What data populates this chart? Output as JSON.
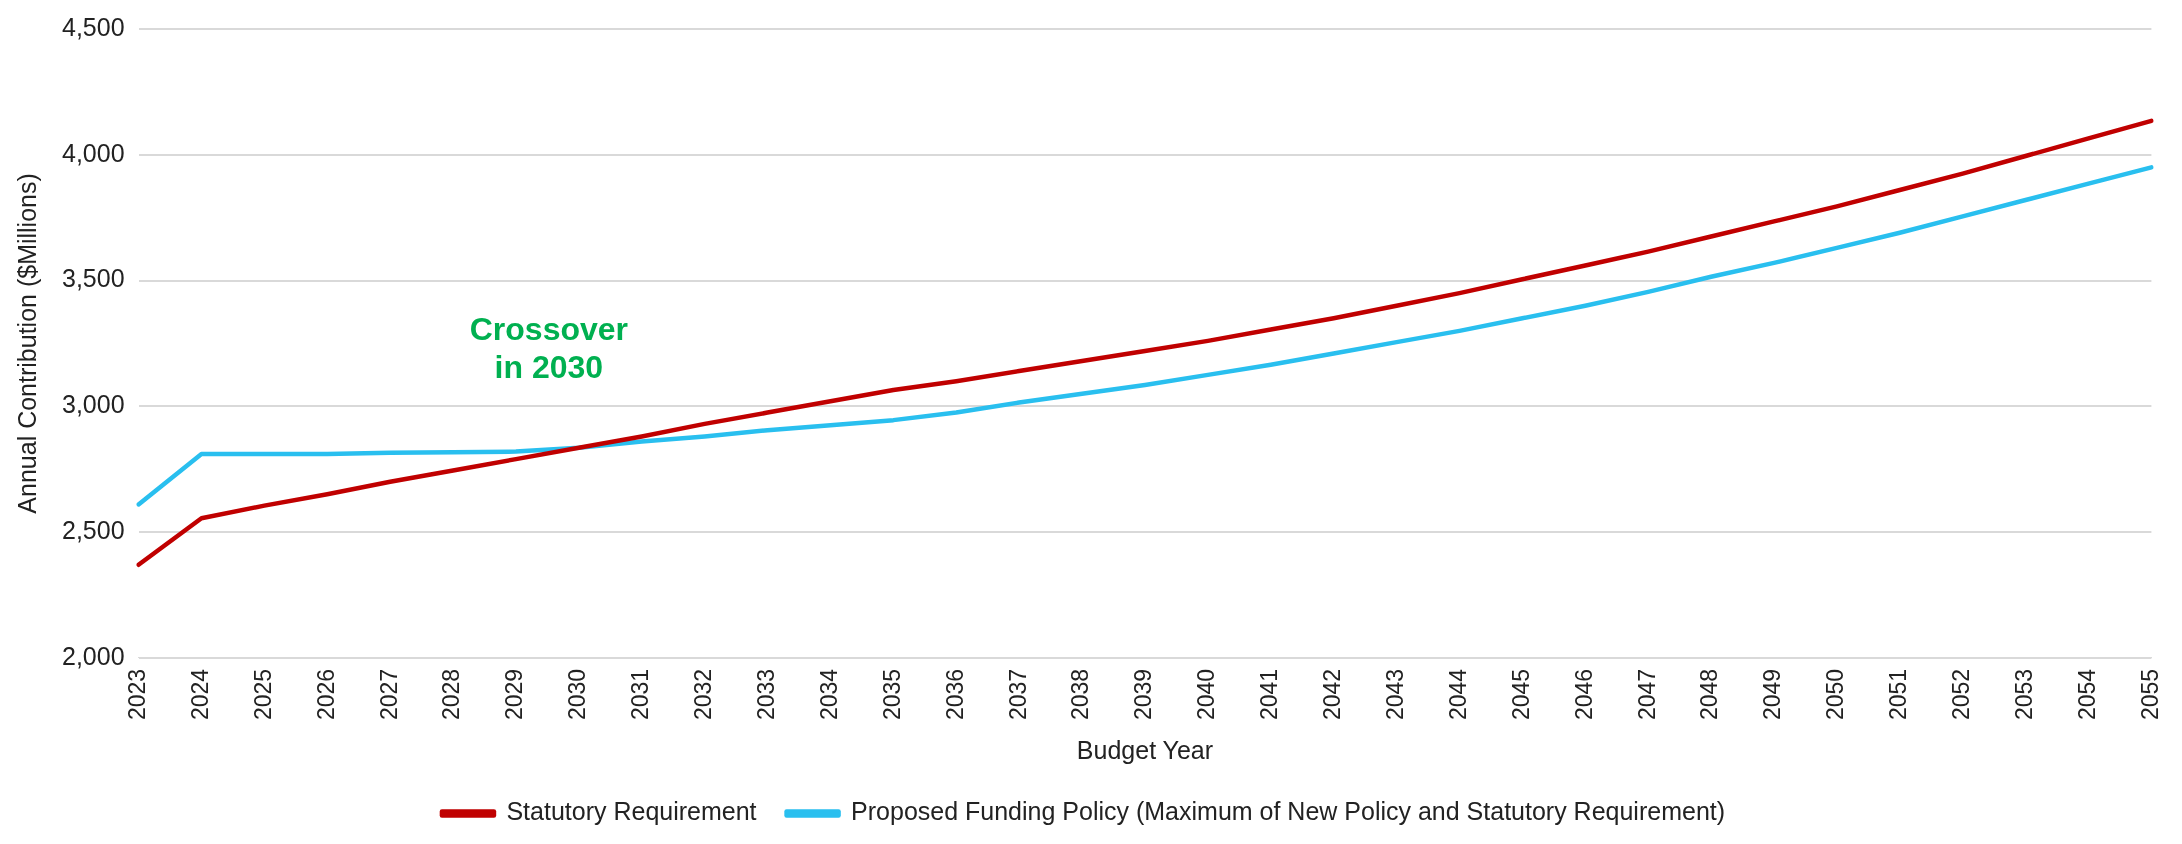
{
  "chart_data": {
    "type": "line",
    "xlabel": "Budget Year",
    "ylabel": "Annual Contribution ($Millions)",
    "categories": [
      "2023",
      "2024",
      "2025",
      "2026",
      "2027",
      "2028",
      "2029",
      "2030",
      "2031",
      "2032",
      "2033",
      "2034",
      "2035",
      "2036",
      "2037",
      "2038",
      "2039",
      "2040",
      "2041",
      "2042",
      "2043",
      "2044",
      "2045",
      "2046",
      "2047",
      "2048",
      "2049",
      "2050",
      "2051",
      "2052",
      "2053",
      "2054",
      "2055"
    ],
    "series": [
      {
        "name": "Statutory Requirement",
        "color": "#c00000",
        "values": [
          2370,
          2555,
          2605,
          2650,
          2700,
          2745,
          2790,
          2835,
          2880,
          2930,
          2975,
          3020,
          3065,
          3100,
          3140,
          3180,
          3220,
          3260,
          3305,
          3350,
          3400,
          3450,
          3505,
          3560,
          3615,
          3675,
          3735,
          3795,
          3860,
          3925,
          3995,
          4065,
          4135
        ]
      },
      {
        "name": "Proposed Funding Policy (Maximum of New Policy and Statutory Requirement)",
        "color": "#29bfef",
        "values": [
          2610,
          2810,
          2810,
          2810,
          2815,
          2817,
          2820,
          2835,
          2860,
          2880,
          2905,
          2925,
          2945,
          2975,
          3015,
          3050,
          3085,
          3125,
          3165,
          3210,
          3255,
          3300,
          3350,
          3400,
          3455,
          3515,
          3570,
          3630,
          3690,
          3755,
          3820,
          3885,
          3950
        ]
      }
    ],
    "ylim": [
      2000,
      4500
    ],
    "yticks": [
      {
        "value": 2000,
        "label": "2,000"
      },
      {
        "value": 2500,
        "label": "2,500"
      },
      {
        "value": 3000,
        "label": "3,000"
      },
      {
        "value": 3500,
        "label": "3,500"
      },
      {
        "value": 4000,
        "label": "4,000"
      },
      {
        "value": 4500,
        "label": "4,500"
      }
    ],
    "grid": "y",
    "legend": "bottom",
    "marker": "none",
    "line_style": "solid",
    "annotations": [
      {
        "text": "Crossover\nin 2030",
        "x": "2030",
        "y": 2835
      }
    ]
  }
}
